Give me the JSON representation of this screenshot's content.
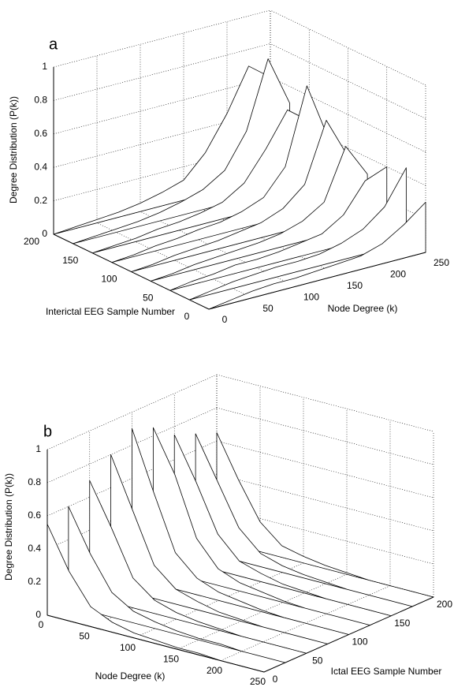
{
  "chart_data": [
    {
      "type": "waterfall3d",
      "panel_label": "a",
      "xlabel": "Node Degree (k)",
      "ylabel": "Interictal EEG Sample Number",
      "zlabel": "Degree Distribution (P(k))",
      "x": [
        0,
        25,
        50,
        75,
        100,
        125,
        150,
        175,
        200,
        225,
        250
      ],
      "series": [
        {
          "y": 0,
          "values": [
            0,
            0.02,
            0.04,
            0.05,
            0.05,
            0.06,
            0.07,
            0.08,
            0.12,
            0.2,
            0.3
          ]
        },
        {
          "y": 25,
          "values": [
            0,
            0.02,
            0.04,
            0.05,
            0.06,
            0.06,
            0.07,
            0.1,
            0.15,
            0.25,
            0.45
          ]
        },
        {
          "y": 50,
          "values": [
            0,
            0.02,
            0.03,
            0.05,
            0.05,
            0.06,
            0.08,
            0.1,
            0.18,
            0.35,
            0.4
          ]
        },
        {
          "y": 75,
          "values": [
            0,
            0.01,
            0.03,
            0.04,
            0.05,
            0.06,
            0.08,
            0.12,
            0.2,
            0.5,
            0.3
          ]
        },
        {
          "y": 100,
          "values": [
            0,
            0.01,
            0.03,
            0.04,
            0.05,
            0.07,
            0.09,
            0.14,
            0.25,
            0.6,
            0.35
          ]
        },
        {
          "y": 125,
          "values": [
            0,
            0.01,
            0.03,
            0.04,
            0.06,
            0.07,
            0.1,
            0.15,
            0.3,
            0.75,
            0.4
          ]
        },
        {
          "y": 150,
          "values": [
            0,
            0.01,
            0.02,
            0.04,
            0.05,
            0.07,
            0.1,
            0.18,
            0.35,
            0.55,
            0.45
          ]
        },
        {
          "y": 175,
          "values": [
            0,
            0.01,
            0.02,
            0.03,
            0.05,
            0.08,
            0.12,
            0.2,
            0.4,
            0.8,
            0.5
          ]
        },
        {
          "y": 200,
          "values": [
            0,
            0.01,
            0.02,
            0.03,
            0.05,
            0.08,
            0.12,
            0.25,
            0.45,
            0.7,
            0.6
          ]
        }
      ],
      "xlim": [
        0,
        250
      ],
      "ylim": [
        0,
        200
      ],
      "zlim": [
        0,
        1
      ],
      "xticks": [
        0,
        50,
        100,
        150,
        200,
        250
      ],
      "yticks": [
        0,
        50,
        100,
        150,
        200
      ],
      "zticks": [
        0,
        0.2,
        0.4,
        0.6,
        0.8,
        1
      ],
      "grid": true,
      "color": "#000000"
    },
    {
      "type": "waterfall3d",
      "panel_label": "b",
      "xlabel": "Node Degree (k)",
      "ylabel": "Ictal EEG Sample Number",
      "zlabel": "Degree Distribution (P(k))",
      "x": [
        0,
        25,
        50,
        75,
        100,
        125,
        150,
        175,
        200,
        225,
        250
      ],
      "series": [
        {
          "y": 0,
          "values": [
            0.55,
            0.3,
            0.12,
            0.06,
            0.03,
            0.02,
            0.01,
            0.01,
            0,
            0,
            0
          ]
        },
        {
          "y": 25,
          "values": [
            0.6,
            0.35,
            0.15,
            0.07,
            0.04,
            0.02,
            0.01,
            0.01,
            0,
            0,
            0
          ]
        },
        {
          "y": 50,
          "values": [
            0.7,
            0.45,
            0.18,
            0.08,
            0.04,
            0.02,
            0.01,
            0,
            0,
            0,
            0
          ]
        },
        {
          "y": 75,
          "values": [
            0.8,
            0.5,
            0.2,
            0.09,
            0.05,
            0.02,
            0.01,
            0,
            0,
            0,
            0
          ]
        },
        {
          "y": 100,
          "values": [
            0.9,
            0.55,
            0.22,
            0.1,
            0.05,
            0.03,
            0.01,
            0,
            0,
            0,
            0
          ]
        },
        {
          "y": 125,
          "values": [
            0.85,
            0.6,
            0.25,
            0.1,
            0.05,
            0.03,
            0.01,
            0,
            0,
            0,
            0
          ]
        },
        {
          "y": 150,
          "values": [
            0.75,
            0.5,
            0.22,
            0.09,
            0.05,
            0.02,
            0.01,
            0,
            0,
            0,
            0
          ]
        },
        {
          "y": 175,
          "values": [
            0.7,
            0.45,
            0.2,
            0.08,
            0.04,
            0.02,
            0.01,
            0,
            0,
            0,
            0
          ]
        },
        {
          "y": 200,
          "values": [
            0.65,
            0.4,
            0.18,
            0.07,
            0.04,
            0.02,
            0.01,
            0,
            0,
            0,
            0
          ]
        }
      ],
      "xlim": [
        0,
        250
      ],
      "ylim": [
        0,
        200
      ],
      "zlim": [
        0,
        1
      ],
      "xticks": [
        0,
        50,
        100,
        150,
        200,
        250
      ],
      "yticks": [
        0,
        50,
        100,
        150,
        200
      ],
      "zticks": [
        0,
        0.2,
        0.4,
        0.6,
        0.8,
        1
      ],
      "grid": true,
      "color": "#000000"
    }
  ]
}
